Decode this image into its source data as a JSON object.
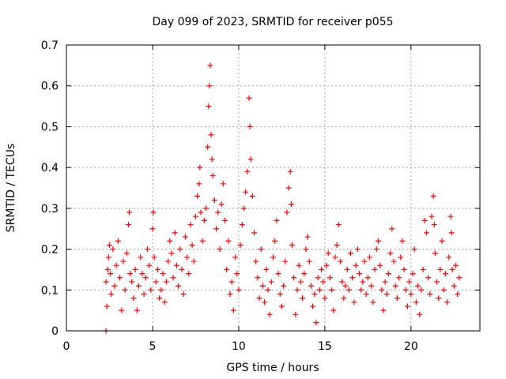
{
  "chart_data": {
    "type": "scatter",
    "title": "Day 099 of 2023, SRMTID for receiver p055",
    "xlabel": "GPS time / hours",
    "ylabel": "SRMTID / TECUs",
    "xlim": [
      0,
      24
    ],
    "ylim": [
      0,
      0.7
    ],
    "xticks": [
      0,
      5,
      10,
      15,
      20
    ],
    "xtick_labels": [
      "0",
      "5",
      "10",
      "15",
      "20"
    ],
    "yticks": [
      0,
      0.1,
      0.2,
      0.3,
      0.4,
      0.5,
      0.6,
      0.7
    ],
    "ytick_labels": [
      "0",
      "0.1",
      "0.2",
      "0.3",
      "0.4",
      "0.5",
      "0.6",
      "0.7"
    ],
    "grid": true,
    "marker": "plus",
    "color": "#ff0000",
    "series": [
      {
        "name": "SRMTID",
        "points": [
          [
            2.3,
            0.0
          ],
          [
            2.3,
            0.12
          ],
          [
            2.35,
            0.06
          ],
          [
            2.4,
            0.15
          ],
          [
            2.45,
            0.18
          ],
          [
            2.5,
            0.21
          ],
          [
            2.55,
            0.14
          ],
          [
            2.6,
            0.09
          ],
          [
            2.7,
            0.2
          ],
          [
            2.8,
            0.11
          ],
          [
            2.9,
            0.16
          ],
          [
            3.0,
            0.22
          ],
          [
            3.1,
            0.13
          ],
          [
            3.2,
            0.05
          ],
          [
            3.3,
            0.17
          ],
          [
            3.4,
            0.1
          ],
          [
            3.5,
            0.19
          ],
          [
            3.6,
            0.26
          ],
          [
            3.65,
            0.29
          ],
          [
            3.7,
            0.14
          ],
          [
            3.8,
            0.12
          ],
          [
            3.9,
            0.08
          ],
          [
            4.0,
            0.15
          ],
          [
            4.1,
            0.05
          ],
          [
            4.2,
            0.11
          ],
          [
            4.3,
            0.18
          ],
          [
            4.4,
            0.14
          ],
          [
            4.5,
            0.09
          ],
          [
            4.6,
            0.13
          ],
          [
            4.7,
            0.2
          ],
          [
            4.8,
            0.16
          ],
          [
            4.9,
            0.1
          ],
          [
            5.0,
            0.25
          ],
          [
            5.05,
            0.29
          ],
          [
            5.1,
            0.18
          ],
          [
            5.2,
            0.12
          ],
          [
            5.3,
            0.15
          ],
          [
            5.4,
            0.08
          ],
          [
            5.5,
            0.1
          ],
          [
            5.6,
            0.14
          ],
          [
            5.7,
            0.07
          ],
          [
            5.8,
            0.12
          ],
          [
            5.9,
            0.17
          ],
          [
            6.0,
            0.22
          ],
          [
            6.1,
            0.19
          ],
          [
            6.2,
            0.13
          ],
          [
            6.3,
            0.24
          ],
          [
            6.4,
            0.16
          ],
          [
            6.5,
            0.11
          ],
          [
            6.6,
            0.2
          ],
          [
            6.7,
            0.15
          ],
          [
            6.8,
            0.09
          ],
          [
            6.9,
            0.23
          ],
          [
            7.0,
            0.18
          ],
          [
            7.1,
            0.14
          ],
          [
            7.2,
            0.26
          ],
          [
            7.3,
            0.21
          ],
          [
            7.4,
            0.17
          ],
          [
            7.5,
            0.28
          ],
          [
            7.6,
            0.33
          ],
          [
            7.7,
            0.36
          ],
          [
            7.75,
            0.4
          ],
          [
            7.8,
            0.29
          ],
          [
            7.9,
            0.22
          ],
          [
            8.0,
            0.27
          ],
          [
            8.1,
            0.3
          ],
          [
            8.2,
            0.45
          ],
          [
            8.25,
            0.55
          ],
          [
            8.3,
            0.6
          ],
          [
            8.35,
            0.65
          ],
          [
            8.4,
            0.48
          ],
          [
            8.45,
            0.42
          ],
          [
            8.5,
            0.38
          ],
          [
            8.6,
            0.32
          ],
          [
            8.7,
            0.25
          ],
          [
            8.8,
            0.29
          ],
          [
            8.9,
            0.2
          ],
          [
            9.0,
            0.31
          ],
          [
            9.1,
            0.36
          ],
          [
            9.2,
            0.27
          ],
          [
            9.3,
            0.15
          ],
          [
            9.4,
            0.22
          ],
          [
            9.5,
            0.09
          ],
          [
            9.6,
            0.12
          ],
          [
            9.7,
            0.05
          ],
          [
            9.8,
            0.18
          ],
          [
            9.9,
            0.14
          ],
          [
            10.0,
            0.1
          ],
          [
            10.1,
            0.21
          ],
          [
            10.2,
            0.26
          ],
          [
            10.3,
            0.3
          ],
          [
            10.4,
            0.34
          ],
          [
            10.5,
            0.39
          ],
          [
            10.6,
            0.57
          ],
          [
            10.65,
            0.5
          ],
          [
            10.7,
            0.42
          ],
          [
            10.8,
            0.33
          ],
          [
            10.9,
            0.24
          ],
          [
            11.0,
            0.17
          ],
          [
            11.1,
            0.13
          ],
          [
            11.2,
            0.08
          ],
          [
            11.3,
            0.2
          ],
          [
            11.4,
            0.11
          ],
          [
            11.5,
            0.07
          ],
          [
            11.6,
            0.15
          ],
          [
            11.7,
            0.1
          ],
          [
            11.8,
            0.04
          ],
          [
            11.9,
            0.12
          ],
          [
            12.0,
            0.18
          ],
          [
            12.1,
            0.22
          ],
          [
            12.2,
            0.27
          ],
          [
            12.3,
            0.14
          ],
          [
            12.4,
            0.09
          ],
          [
            12.5,
            0.06
          ],
          [
            12.6,
            0.11
          ],
          [
            12.7,
            0.17
          ],
          [
            12.8,
            0.29
          ],
          [
            12.9,
            0.35
          ],
          [
            13.0,
            0.39
          ],
          [
            13.05,
            0.31
          ],
          [
            13.1,
            0.21
          ],
          [
            13.2,
            0.13
          ],
          [
            13.3,
            0.04
          ],
          [
            13.4,
            0.1
          ],
          [
            13.5,
            0.16
          ],
          [
            13.6,
            0.12
          ],
          [
            13.7,
            0.08
          ],
          [
            13.8,
            0.14
          ],
          [
            13.9,
            0.2
          ],
          [
            14.0,
            0.23
          ],
          [
            14.1,
            0.17
          ],
          [
            14.2,
            0.11
          ],
          [
            14.3,
            0.06
          ],
          [
            14.4,
            0.09
          ],
          [
            14.5,
            0.02
          ],
          [
            14.6,
            0.13
          ],
          [
            14.7,
            0.1
          ],
          [
            14.8,
            0.15
          ],
          [
            14.9,
            0.12
          ],
          [
            15.0,
            0.08
          ],
          [
            15.1,
            0.16
          ],
          [
            15.2,
            0.19
          ],
          [
            15.3,
            0.13
          ],
          [
            15.4,
            0.1
          ],
          [
            15.5,
            0.05
          ],
          [
            15.6,
            0.18
          ],
          [
            15.7,
            0.21
          ],
          [
            15.8,
            0.26
          ],
          [
            15.9,
            0.17
          ],
          [
            16.0,
            0.12
          ],
          [
            16.1,
            0.08
          ],
          [
            16.2,
            0.11
          ],
          [
            16.3,
            0.15
          ],
          [
            16.4,
            0.1
          ],
          [
            16.5,
            0.19
          ],
          [
            16.6,
            0.13
          ],
          [
            16.7,
            0.07
          ],
          [
            16.8,
            0.16
          ],
          [
            16.9,
            0.2
          ],
          [
            17.0,
            0.14
          ],
          [
            17.1,
            0.1
          ],
          [
            17.2,
            0.12
          ],
          [
            17.3,
            0.17
          ],
          [
            17.4,
            0.09
          ],
          [
            17.5,
            0.13
          ],
          [
            17.6,
            0.18
          ],
          [
            17.7,
            0.11
          ],
          [
            17.8,
            0.07
          ],
          [
            17.9,
            0.15
          ],
          [
            18.0,
            0.2
          ],
          [
            18.1,
            0.22
          ],
          [
            18.2,
            0.16
          ],
          [
            18.3,
            0.1
          ],
          [
            18.4,
            0.05
          ],
          [
            18.5,
            0.12
          ],
          [
            18.6,
            0.09
          ],
          [
            18.7,
            0.14
          ],
          [
            18.8,
            0.19
          ],
          [
            18.9,
            0.25
          ],
          [
            19.0,
            0.17
          ],
          [
            19.1,
            0.11
          ],
          [
            19.2,
            0.08
          ],
          [
            19.3,
            0.13
          ],
          [
            19.4,
            0.18
          ],
          [
            19.5,
            0.22
          ],
          [
            19.6,
            0.15
          ],
          [
            19.7,
            0.1
          ],
          [
            19.8,
            0.06
          ],
          [
            19.9,
            0.12
          ],
          [
            20.0,
            0.09
          ],
          [
            20.1,
            0.14
          ],
          [
            20.2,
            0.2
          ],
          [
            20.3,
            0.07
          ],
          [
            20.4,
            0.11
          ],
          [
            20.5,
            0.04
          ],
          [
            20.6,
            0.1
          ],
          [
            20.7,
            0.15
          ],
          [
            20.8,
            0.27
          ],
          [
            20.9,
            0.24
          ],
          [
            21.0,
            0.13
          ],
          [
            21.1,
            0.09
          ],
          [
            21.2,
            0.28
          ],
          [
            21.3,
            0.33
          ],
          [
            21.35,
            0.26
          ],
          [
            21.4,
            0.19
          ],
          [
            21.5,
            0.12
          ],
          [
            21.6,
            0.08
          ],
          [
            21.7,
            0.15
          ],
          [
            21.8,
            0.22
          ],
          [
            21.9,
            0.1
          ],
          [
            22.0,
            0.14
          ],
          [
            22.1,
            0.07
          ],
          [
            22.2,
            0.18
          ],
          [
            22.3,
            0.28
          ],
          [
            22.35,
            0.24
          ],
          [
            22.4,
            0.15
          ],
          [
            22.5,
            0.11
          ],
          [
            22.6,
            0.16
          ],
          [
            22.7,
            0.09
          ],
          [
            22.8,
            0.13
          ]
        ]
      }
    ]
  }
}
